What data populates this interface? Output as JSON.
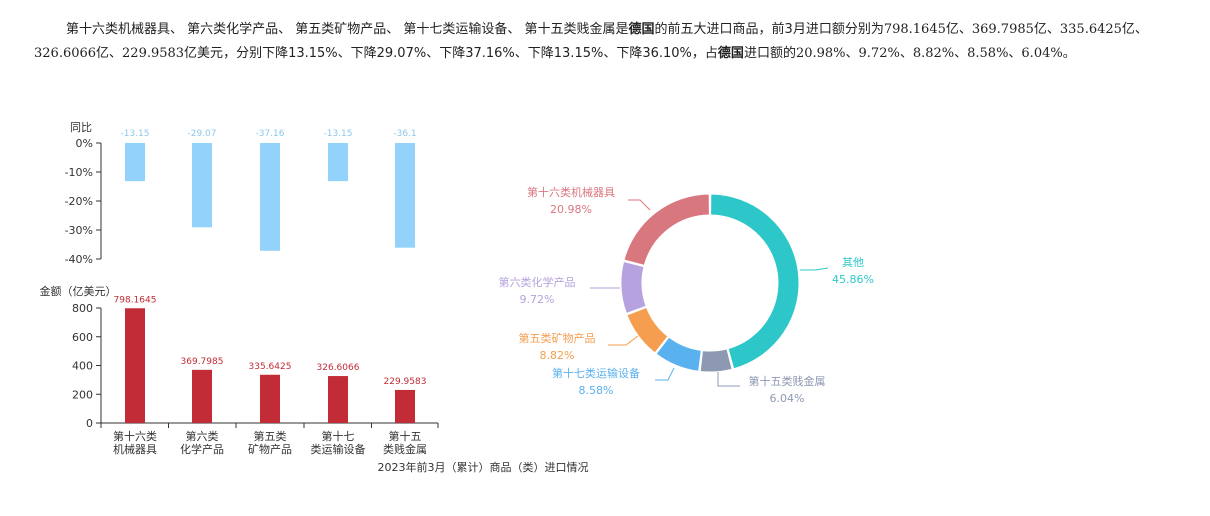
{
  "summary": {
    "part1": "第十六类机械器具、 第六类化学产品、 第五类矿物产品、 第十七类运输设备、 第十五类贱金属是",
    "country1": "德国",
    "part2": "的前五大进口商品，前3月进口额分别为",
    "values": "798.1645亿、369.7985亿、335.6425亿、326.6066亿、229.9583亿美元",
    "part3": "，分别下降13.15%、下降29.07%、下降37.16%、下降13.15%、下降36.10%，占",
    "country2": "德国",
    "part4": "进口额的",
    "shares": "20.98%、9.72%、8.82%、8.58%、6.04%。"
  },
  "chart_data": [
    {
      "type": "bar",
      "role": "yoy",
      "ylabel": "同比",
      "ylim": [
        -40,
        0
      ],
      "yticks": [
        0,
        -10,
        -20,
        -30,
        -40
      ],
      "ytick_labels": [
        "0%",
        "-10%",
        "-20%",
        "-30%",
        "-40%"
      ],
      "values": [
        -13.15,
        -29.07,
        -37.16,
        -13.15,
        -36.1
      ],
      "data_labels": [
        "-13.15",
        "-29.07",
        "-37.16",
        "-13.15",
        "-36.1"
      ],
      "color": "#93d2fa",
      "label_color": "#8cc8ec"
    },
    {
      "type": "bar",
      "role": "amount",
      "ylabel": "金额（亿美元）",
      "ylim": [
        0,
        800
      ],
      "yticks": [
        0,
        200,
        400,
        600,
        800
      ],
      "ytick_labels": [
        "0",
        "200",
        "400",
        "600",
        "800"
      ],
      "categories": [
        [
          "第十六类",
          "机械器具"
        ],
        [
          "第六类",
          "化学产品"
        ],
        [
          "第五类",
          "矿物产品"
        ],
        [
          "第十七",
          "类运输设备"
        ],
        [
          "第十五",
          "类贱金属"
        ]
      ],
      "values": [
        798.1645,
        369.7985,
        335.6425,
        326.6066,
        229.9583
      ],
      "data_labels": [
        "798.1645",
        "369.7985",
        "335.6425",
        "326.6066",
        "229.9583"
      ],
      "color": "#c22c36",
      "label_color": "#c22c36",
      "xlabel": "2023年前3月（累计）商品（类）进口情况"
    },
    {
      "type": "pie",
      "variant": "donut",
      "slices": [
        {
          "name": "其他",
          "value": 45.86,
          "label": "45.86%",
          "color": "#2ec7c9"
        },
        {
          "name": "第十五类贱金属",
          "value": 6.04,
          "label": "6.04%",
          "color": "#8d98b3"
        },
        {
          "name": "第十七类运输设备",
          "value": 8.58,
          "label": "8.58%",
          "color": "#5ab1ef"
        },
        {
          "name": "第五类矿物产品",
          "value": 8.82,
          "label": "8.82%",
          "color": "#f59e4f"
        },
        {
          "name": "第六类化学产品",
          "value": 9.72,
          "label": "9.72%",
          "color": "#b6a2de"
        },
        {
          "name": "第十六类机械器具",
          "value": 20.98,
          "label": "20.98%",
          "color": "#d9777f"
        }
      ]
    }
  ]
}
